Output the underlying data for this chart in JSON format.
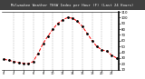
{
  "title": "Milwaukee Weather THSW Index per Hour (F) (Last 24 Hours)",
  "hours": [
    0,
    1,
    2,
    3,
    4,
    5,
    6,
    7,
    8,
    9,
    10,
    11,
    12,
    13,
    14,
    15,
    16,
    17,
    18,
    19,
    20,
    21,
    22,
    23
  ],
  "values": [
    28,
    26,
    24,
    22,
    21,
    20,
    24,
    38,
    55,
    68,
    80,
    90,
    96,
    100,
    99,
    94,
    85,
    73,
    60,
    50,
    44,
    42,
    35,
    30
  ],
  "line_color": "#ff0000",
  "marker_color": "#000000",
  "plot_bg": "#ffffff",
  "title_bg": "#404040",
  "title_fg": "#ffffff",
  "grid_color": "#999999",
  "axis_color": "#000000",
  "ylim": [
    10,
    110
  ],
  "yticks": [
    10,
    20,
    30,
    40,
    50,
    60,
    70,
    80,
    90,
    100,
    110
  ],
  "grid_hours": [
    2,
    4,
    6,
    8,
    10,
    12,
    14,
    16,
    18,
    20,
    22
  ],
  "xtick_every": 2
}
